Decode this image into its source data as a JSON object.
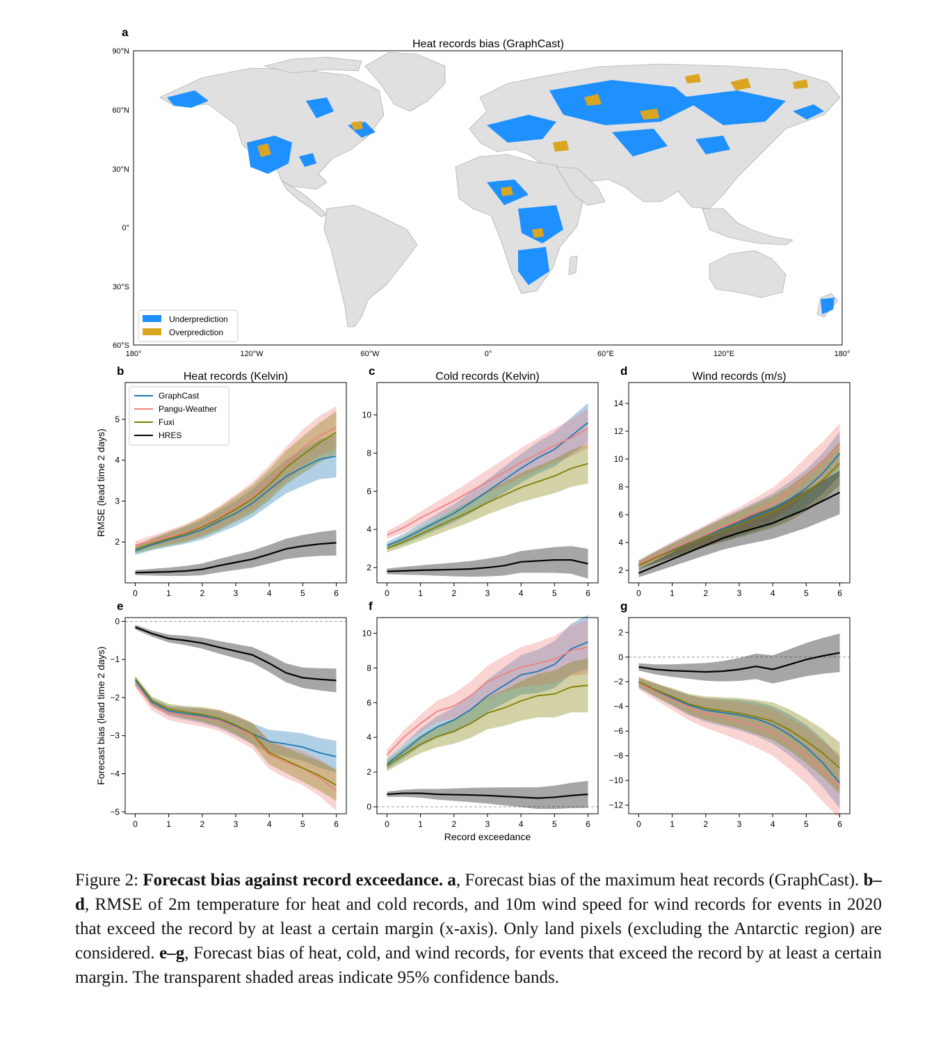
{
  "colors": {
    "graphcast": "#1f77b4",
    "pangu": "#f08080",
    "fuxi": "#7f7f00",
    "hres": "#000000",
    "land": "#e0e0e0",
    "underprediction": "#1e90ff",
    "overprediction": "#daa520"
  },
  "map": {
    "panel_letter": "a",
    "title": "Heat records bias (GraphCast)",
    "lat_ticks": [
      "90°N",
      "60°N",
      "30°N",
      "0°",
      "30°S",
      "60°S"
    ],
    "lon_ticks": [
      "180°",
      "120°W",
      "60°W",
      "0°",
      "60°E",
      "120°E",
      "180°"
    ],
    "legend": [
      "Underprediction",
      "Overprediction"
    ]
  },
  "legend_series": [
    "GraphCast",
    "Pangu-Weather",
    "Fuxi",
    "HRES"
  ],
  "chart_data": [
    {
      "panel": "b",
      "type": "line",
      "title": "Heat records (Kelvin)",
      "ylabel": "RMSE (lead time 2 days)",
      "xlabel": "",
      "xlim": [
        -0.3,
        6.3
      ],
      "ylim": [
        1.0,
        5.9
      ],
      "xticks": [
        0,
        1,
        2,
        3,
        4,
        5,
        6
      ],
      "yticks": [
        2,
        3,
        4,
        5
      ],
      "x": [
        0,
        0.5,
        1,
        1.5,
        2,
        2.5,
        3,
        3.5,
        4,
        4.5,
        5,
        5.5,
        6
      ],
      "series": [
        {
          "name": "GraphCast",
          "color": "#1f77b4",
          "values": [
            1.78,
            1.93,
            2.05,
            2.16,
            2.3,
            2.5,
            2.7,
            2.95,
            3.28,
            3.6,
            3.82,
            4.02,
            4.1
          ],
          "band": 0.1
        },
        {
          "name": "Pangu-Weather",
          "color": "#f08080",
          "values": [
            1.92,
            2.02,
            2.12,
            2.23,
            2.39,
            2.6,
            2.85,
            3.12,
            3.5,
            3.9,
            4.3,
            4.6,
            4.8
          ],
          "band": 0.1
        },
        {
          "name": "Fuxi",
          "color": "#7f7f00",
          "values": [
            1.82,
            1.96,
            2.08,
            2.2,
            2.36,
            2.56,
            2.8,
            3.05,
            3.4,
            3.82,
            4.13,
            4.43,
            4.68
          ],
          "band": 0.1
        },
        {
          "name": "HRES",
          "color": "#000000",
          "values": [
            1.25,
            1.26,
            1.27,
            1.29,
            1.33,
            1.42,
            1.5,
            1.58,
            1.7,
            1.83,
            1.9,
            1.95,
            1.98
          ],
          "band": 0.06
        }
      ]
    },
    {
      "panel": "c",
      "type": "line",
      "title": "Cold records (Kelvin)",
      "ylabel": "",
      "xlabel": "",
      "xlim": [
        -0.3,
        6.3
      ],
      "ylim": [
        1.2,
        11.7
      ],
      "xticks": [
        0,
        1,
        2,
        3,
        4,
        5,
        6
      ],
      "yticks": [
        2,
        4,
        6,
        8,
        10
      ],
      "x": [
        0,
        0.5,
        1,
        1.5,
        2,
        2.5,
        3,
        3.5,
        4,
        4.5,
        5,
        5.5,
        6
      ],
      "series": [
        {
          "name": "GraphCast",
          "color": "#1f77b4",
          "values": [
            3.15,
            3.5,
            3.95,
            4.4,
            4.85,
            5.4,
            6.0,
            6.6,
            7.2,
            7.75,
            8.2,
            8.9,
            9.6
          ],
          "band": 0.2
        },
        {
          "name": "Pangu-Weather",
          "color": "#f08080",
          "values": [
            3.7,
            4.1,
            4.6,
            5.05,
            5.5,
            6.0,
            6.5,
            7.0,
            7.5,
            7.95,
            8.4,
            8.8,
            9.3
          ],
          "band": 0.2
        },
        {
          "name": "Fuxi",
          "color": "#7f7f00",
          "values": [
            3.0,
            3.35,
            3.75,
            4.15,
            4.55,
            4.95,
            5.4,
            5.8,
            6.2,
            6.5,
            6.8,
            7.2,
            7.45
          ],
          "band": 0.2
        },
        {
          "name": "HRES",
          "color": "#000000",
          "values": [
            1.8,
            1.83,
            1.86,
            1.88,
            1.9,
            1.93,
            2.0,
            2.1,
            2.3,
            2.35,
            2.4,
            2.4,
            2.2
          ],
          "band": 0.15
        }
      ]
    },
    {
      "panel": "d",
      "type": "line",
      "title": "Wind records (m/s)",
      "ylabel": "",
      "xlabel": "",
      "xlim": [
        -0.3,
        6.3
      ],
      "ylim": [
        1.1,
        15.5
      ],
      "xticks": [
        0,
        1,
        2,
        3,
        4,
        5,
        6
      ],
      "yticks": [
        2,
        4,
        6,
        8,
        10,
        12,
        14
      ],
      "x": [
        0,
        0.5,
        1,
        1.5,
        2,
        2.5,
        3,
        3.5,
        4,
        4.5,
        5,
        5.5,
        6
      ],
      "series": [
        {
          "name": "GraphCast",
          "color": "#1f77b4",
          "values": [
            2.4,
            2.95,
            3.45,
            3.95,
            4.45,
            4.95,
            5.4,
            5.9,
            6.4,
            7.1,
            7.9,
            9.0,
            10.4
          ],
          "band": 0.3
        },
        {
          "name": "Pangu-Weather",
          "color": "#f08080",
          "values": [
            2.45,
            3.0,
            3.55,
            4.05,
            4.55,
            5.1,
            5.6,
            6.2,
            6.8,
            7.7,
            8.8,
            9.8,
            11.0
          ],
          "band": 0.3
        },
        {
          "name": "Fuxi",
          "color": "#7f7f00",
          "values": [
            2.35,
            2.9,
            3.4,
            3.9,
            4.4,
            4.85,
            5.3,
            5.75,
            6.2,
            6.8,
            7.6,
            8.5,
            9.7
          ],
          "band": 0.3
        },
        {
          "name": "HRES",
          "color": "#000000",
          "values": [
            1.8,
            2.3,
            2.8,
            3.3,
            3.8,
            4.3,
            4.7,
            5.05,
            5.4,
            5.9,
            6.4,
            7.0,
            7.6
          ],
          "band": 0.3
        }
      ]
    },
    {
      "panel": "e",
      "type": "line",
      "title": "",
      "ylabel": "Forecast bias (lead time 2 days)",
      "xlabel": "",
      "xlim": [
        -0.3,
        6.3
      ],
      "ylim": [
        -5.05,
        0.1
      ],
      "xticks": [
        0,
        1,
        2,
        3,
        4,
        5,
        6
      ],
      "yticks": [
        0,
        -1,
        -2,
        -3,
        -4,
        -5
      ],
      "zero_line": true,
      "x": [
        0,
        0.5,
        1,
        1.5,
        2,
        2.5,
        3,
        3.5,
        4,
        4.5,
        5,
        5.5,
        6
      ],
      "series": [
        {
          "name": "GraphCast",
          "color": "#1f77b4",
          "values": [
            -1.55,
            -2.12,
            -2.35,
            -2.42,
            -2.48,
            -2.58,
            -2.75,
            -2.95,
            -3.15,
            -3.22,
            -3.3,
            -3.45,
            -3.55
          ],
          "band": 0.08
        },
        {
          "name": "Pangu-Weather",
          "color": "#f08080",
          "values": [
            -1.65,
            -2.2,
            -2.42,
            -2.48,
            -2.52,
            -2.6,
            -2.78,
            -3.0,
            -3.5,
            -3.7,
            -3.85,
            -4.1,
            -4.45
          ],
          "band": 0.1
        },
        {
          "name": "Fuxi",
          "color": "#7f7f00",
          "values": [
            -1.5,
            -2.08,
            -2.3,
            -2.38,
            -2.44,
            -2.54,
            -2.72,
            -2.95,
            -3.45,
            -3.65,
            -3.85,
            -4.05,
            -4.3
          ],
          "band": 0.08
        },
        {
          "name": "HRES",
          "color": "#000000",
          "values": [
            -0.15,
            -0.32,
            -0.45,
            -0.5,
            -0.57,
            -0.68,
            -0.78,
            -0.88,
            -1.1,
            -1.35,
            -1.48,
            -1.52,
            -1.55
          ],
          "band": 0.06
        }
      ]
    },
    {
      "panel": "f",
      "type": "line",
      "title": "",
      "ylabel": "",
      "xlabel": "Record exceedance",
      "xlim": [
        -0.3,
        6.3
      ],
      "ylim": [
        -0.4,
        10.9
      ],
      "xticks": [
        0,
        1,
        2,
        3,
        4,
        5,
        6
      ],
      "yticks": [
        0,
        2,
        4,
        6,
        8,
        10
      ],
      "zero_line": true,
      "x": [
        0,
        0.5,
        1,
        1.5,
        2,
        2.5,
        3,
        3.5,
        4,
        4.5,
        5,
        5.5,
        6
      ],
      "series": [
        {
          "name": "GraphCast",
          "color": "#1f77b4",
          "values": [
            2.45,
            3.2,
            4.0,
            4.6,
            5.0,
            5.6,
            6.4,
            7.0,
            7.6,
            7.8,
            8.2,
            9.1,
            9.5
          ],
          "band": 0.3
        },
        {
          "name": "Pangu-Weather",
          "color": "#f08080",
          "values": [
            3.0,
            4.0,
            4.8,
            5.5,
            5.8,
            6.4,
            7.2,
            7.65,
            8.05,
            8.25,
            8.5,
            9.0,
            9.2
          ],
          "band": 0.3
        },
        {
          "name": "Fuxi",
          "color": "#7f7f00",
          "values": [
            2.35,
            3.0,
            3.6,
            4.05,
            4.35,
            4.8,
            5.4,
            5.7,
            6.1,
            6.4,
            6.5,
            6.9,
            7.0
          ],
          "band": 0.3
        },
        {
          "name": "HRES",
          "color": "#000000",
          "values": [
            0.72,
            0.78,
            0.78,
            0.72,
            0.7,
            0.68,
            0.65,
            0.6,
            0.55,
            0.5,
            0.55,
            0.65,
            0.72
          ],
          "band": 0.15
        }
      ]
    },
    {
      "panel": "g",
      "type": "line",
      "title": "",
      "ylabel": "",
      "xlabel": "",
      "xlim": [
        -0.3,
        6.3
      ],
      "ylim": [
        -12.7,
        3.2
      ],
      "xticks": [
        0,
        1,
        2,
        3,
        4,
        5,
        6
      ],
      "yticks": [
        2,
        0,
        -2,
        -4,
        -6,
        -8,
        -10,
        -12
      ],
      "zero_line": true,
      "x": [
        0,
        0.5,
        1,
        1.5,
        2,
        2.5,
        3,
        3.5,
        4,
        4.5,
        5,
        5.5,
        6
      ],
      "series": [
        {
          "name": "GraphCast",
          "color": "#1f77b4",
          "values": [
            -2.1,
            -2.7,
            -3.3,
            -3.9,
            -4.3,
            -4.5,
            -4.7,
            -5.0,
            -5.5,
            -6.3,
            -7.3,
            -8.6,
            -10.2
          ],
          "band": 0.4
        },
        {
          "name": "Pangu-Weather",
          "color": "#f08080",
          "values": [
            -2.1,
            -2.8,
            -3.45,
            -4.1,
            -4.55,
            -4.85,
            -5.2,
            -5.6,
            -6.1,
            -7.0,
            -8.0,
            -9.3,
            -10.5
          ],
          "band": 0.5
        },
        {
          "name": "Fuxi",
          "color": "#7f7f00",
          "values": [
            -2.0,
            -2.65,
            -3.2,
            -3.8,
            -4.15,
            -4.35,
            -4.55,
            -4.85,
            -5.2,
            -5.9,
            -6.8,
            -7.8,
            -9.0
          ],
          "band": 0.4
        },
        {
          "name": "HRES",
          "color": "#000000",
          "values": [
            -0.8,
            -1.0,
            -1.1,
            -1.15,
            -1.2,
            -1.15,
            -1.0,
            -0.75,
            -1.0,
            -0.6,
            -0.2,
            0.1,
            0.35
          ],
          "band": 0.3
        }
      ]
    }
  ],
  "caption": {
    "prefix": "Figure 2: ",
    "bold_title": "Forecast bias against record exceedance.",
    "l_a": " a",
    "t_a": ", Forecast bias of the maximum heat records (GraphCast). ",
    "l_bd": "b–d",
    "t_bd": ", RMSE of 2m temperature for heat and cold records, and 10m wind speed for wind records for events in 2020 that exceed the record by at least a certain margin (x-axis). Only land pixels (excluding the Antarctic region) are considered. ",
    "l_eg": "e–g",
    "t_eg": ", Forecast bias of heat, cold, and wind records, for events that exceed the record by at least a certain margin. The transparent shaded areas indicate 95% confidence bands."
  }
}
